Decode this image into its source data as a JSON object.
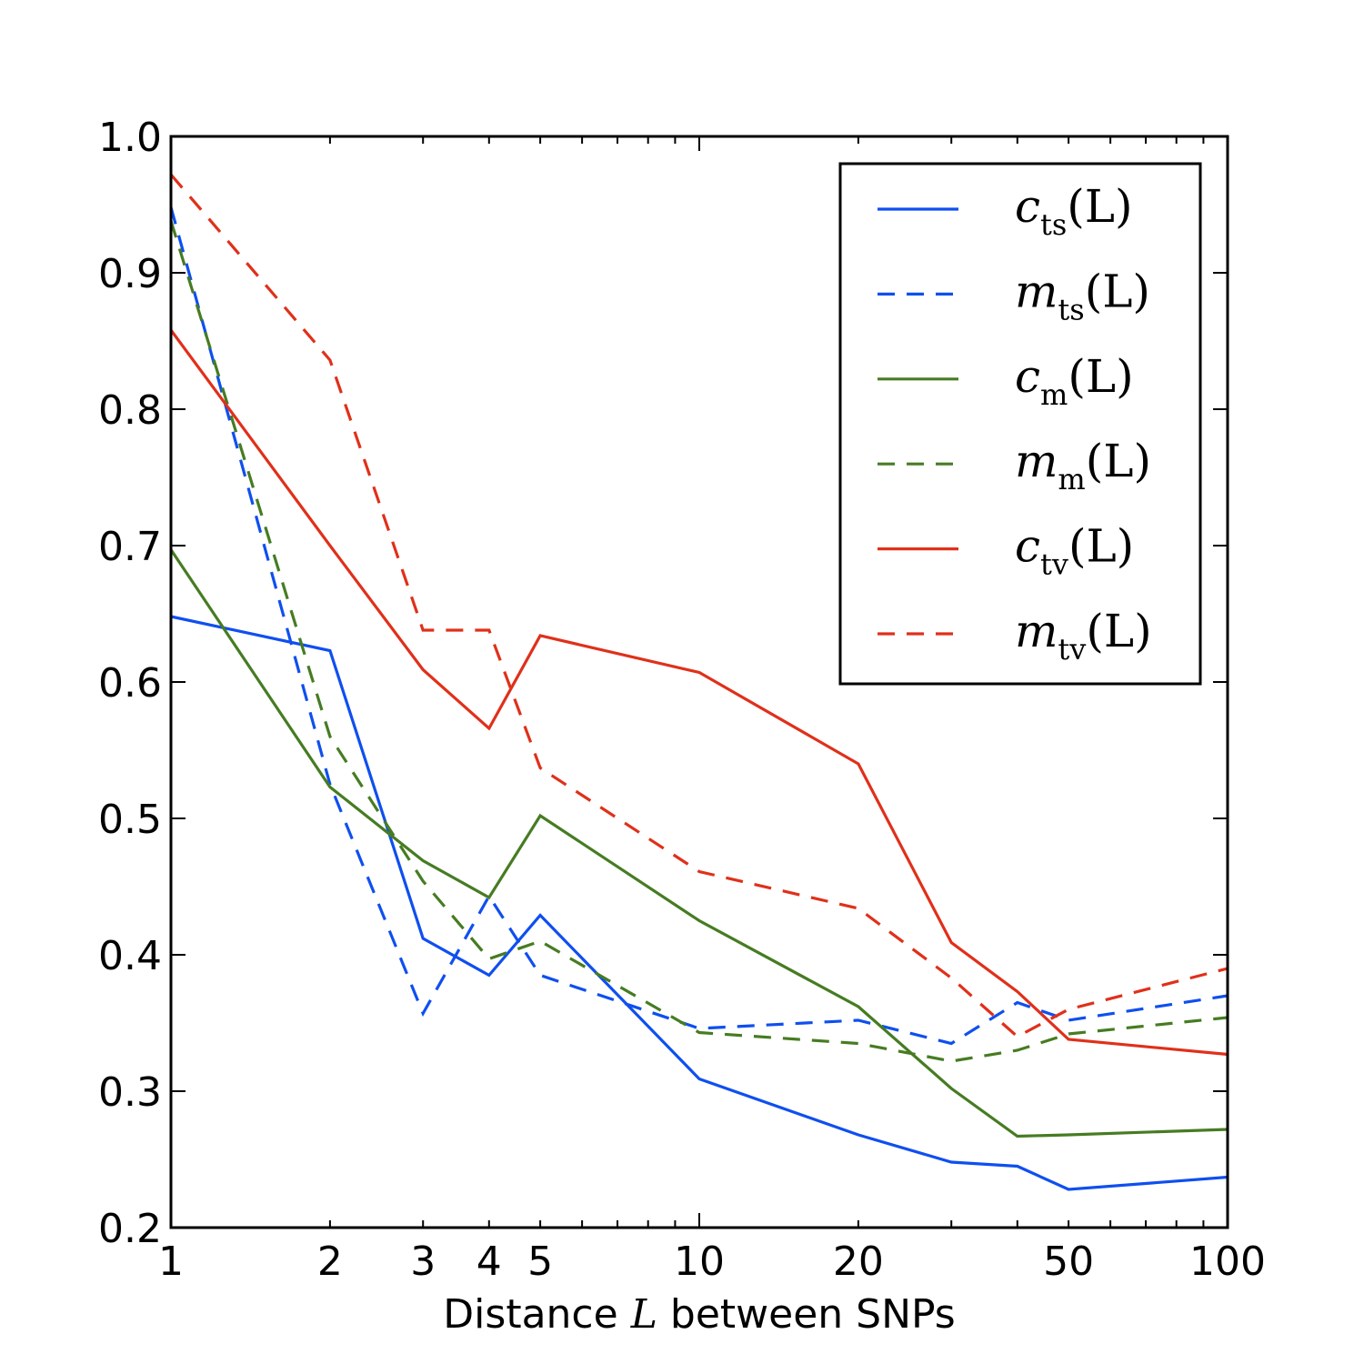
{
  "chart_data": {
    "type": "line",
    "title": "",
    "xlabel": "Distance",
    "xlabel_var": "L",
    "xlabel_suffix": "between SNPs",
    "ylabel": "",
    "xscale": "log",
    "xlim": [
      1,
      100
    ],
    "ylim": [
      0.2,
      1.0
    ],
    "legend_position": "top-right",
    "x": [
      1,
      2,
      3,
      4,
      5,
      10,
      20,
      30,
      40,
      50,
      100
    ],
    "xticks": [
      {
        "value": 1,
        "label": "1"
      },
      {
        "value": 2,
        "label": "2"
      },
      {
        "value": 3,
        "label": "3"
      },
      {
        "value": 4,
        "label": "4"
      },
      {
        "value": 5,
        "label": "5"
      },
      {
        "value": 10,
        "label": "10"
      },
      {
        "value": 20,
        "label": "20"
      },
      {
        "value": 50,
        "label": "50"
      },
      {
        "value": 100,
        "label": "100"
      }
    ],
    "yticks": [
      {
        "value": 0.2,
        "label": "0.2"
      },
      {
        "value": 0.3,
        "label": "0.3"
      },
      {
        "value": 0.4,
        "label": "0.4"
      },
      {
        "value": 0.5,
        "label": "0.5"
      },
      {
        "value": 0.6,
        "label": "0.6"
      },
      {
        "value": 0.7,
        "label": "0.7"
      },
      {
        "value": 0.8,
        "label": "0.8"
      },
      {
        "value": 0.9,
        "label": "0.9"
      },
      {
        "value": 1.0,
        "label": "1.0"
      }
    ],
    "series": [
      {
        "name": "c_ts(L)",
        "letter": "c",
        "sub": "ts",
        "arg": "(L)",
        "color": "#0f4ff0",
        "dash": false,
        "values": [
          0.648,
          0.623,
          0.412,
          0.385,
          0.429,
          0.309,
          0.268,
          0.248,
          0.245,
          0.228,
          0.237
        ]
      },
      {
        "name": "m_ts(L)",
        "letter": "m",
        "sub": "ts",
        "arg": "(L)",
        "color": "#0f4ff0",
        "dash": true,
        "values": [
          0.948,
          0.525,
          0.357,
          0.443,
          0.385,
          0.346,
          0.352,
          0.335,
          0.365,
          0.352,
          0.37
        ]
      },
      {
        "name": "c_m(L)",
        "letter": "c",
        "sub": "m",
        "arg": "(L)",
        "color": "#467c22",
        "dash": false,
        "values": [
          0.697,
          0.523,
          0.469,
          0.442,
          0.502,
          0.425,
          0.362,
          0.302,
          0.267,
          0.268,
          0.272
        ]
      },
      {
        "name": "m_m(L)",
        "letter": "m",
        "sub": "m",
        "arg": "(L)",
        "color": "#467c22",
        "dash": true,
        "values": [
          0.938,
          0.56,
          0.454,
          0.397,
          0.41,
          0.343,
          0.335,
          0.322,
          0.33,
          0.342,
          0.354
        ]
      },
      {
        "name": "c_tv(L)",
        "letter": "c",
        "sub": "tv",
        "arg": "(L)",
        "color": "#e0301a",
        "dash": false,
        "values": [
          0.858,
          0.7,
          0.609,
          0.566,
          0.634,
          0.607,
          0.54,
          0.409,
          0.373,
          0.338,
          0.327
        ]
      },
      {
        "name": "m_tv(L)",
        "letter": "m",
        "sub": "tv",
        "arg": "(L)",
        "color": "#e0301a",
        "dash": true,
        "values": [
          0.972,
          0.836,
          0.638,
          0.638,
          0.537,
          0.461,
          0.434,
          0.383,
          0.34,
          0.36,
          0.39
        ]
      }
    ]
  }
}
